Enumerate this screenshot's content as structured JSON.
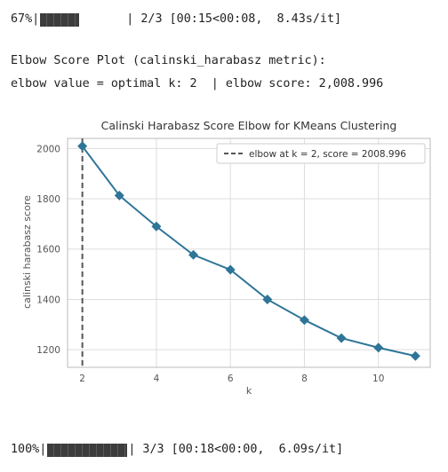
{
  "progress_top": {
    "percent_text": "67%|",
    "fraction": 0.667,
    "stats_text": "| 2/3 [00:15<00:08,  8.43s/it]"
  },
  "elbow_heading": "Elbow Score Plot (calinski_harabasz metric):",
  "elbow_result": "elbow value = optimal k: 2  | elbow score: 2,008.996",
  "progress_bottom": {
    "percent_text": "100%|",
    "fraction": 1.0,
    "stats_text": "| 3/3 [00:18<00:00,  6.09s/it]"
  },
  "chart_data": {
    "type": "line",
    "title": "Calinski Harabasz Score Elbow for KMeans Clustering",
    "xlabel": "k",
    "ylabel": "calinski harabasz score",
    "x": [
      2,
      3,
      4,
      5,
      6,
      7,
      8,
      9,
      10,
      11
    ],
    "y": [
      2009,
      1813,
      1690,
      1577,
      1518,
      1400,
      1318,
      1246,
      1208,
      1175
    ],
    "xlim": [
      1.6,
      11.4
    ],
    "ylim": [
      1130,
      2040
    ],
    "xticks": [
      2,
      4,
      6,
      8,
      10
    ],
    "yticks": [
      1200,
      1400,
      1600,
      1800,
      2000
    ],
    "grid": true,
    "line_color": "#2e7597",
    "marker": "diamond",
    "elbow_x": 2,
    "elbow_color": "#555555",
    "legend_text": "elbow at k = 2, score = 2008.996",
    "legend_placement": "top-right"
  }
}
